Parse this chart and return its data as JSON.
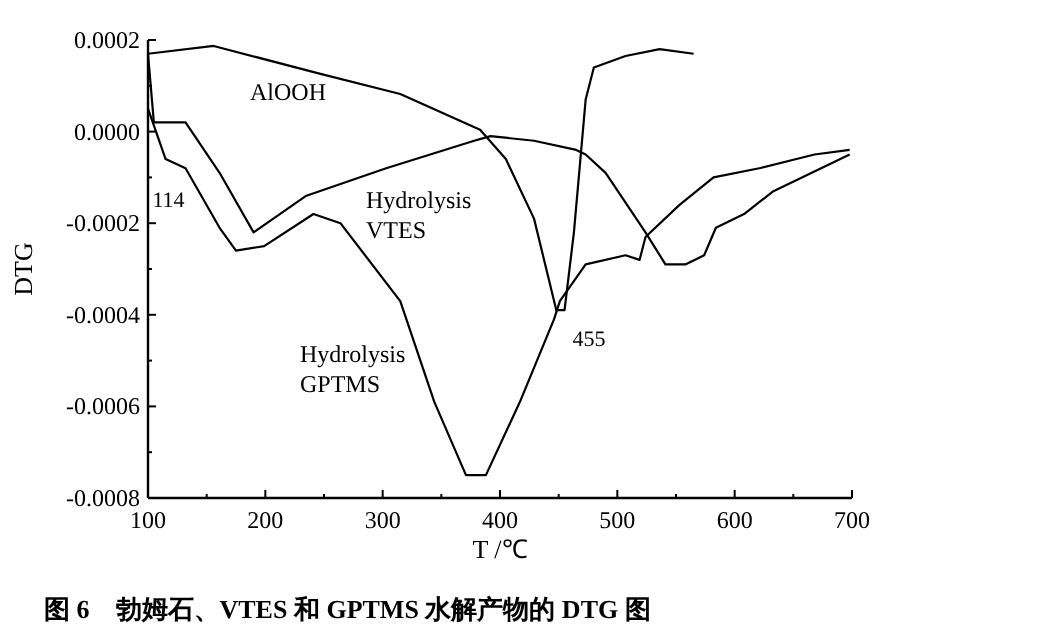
{
  "chart_data": {
    "type": "line",
    "title": "图 6　勃姆石、VTES 和 GPTMS 水解产物的 DTG 图",
    "xlabel": "T /℃",
    "ylabel": "DTG",
    "xlim": [
      100,
      700
    ],
    "xticks": [
      100,
      200,
      300,
      400,
      500,
      600,
      700
    ],
    "ylim": [
      -0.0008,
      0.0002
    ],
    "yticks": [
      {
        "value": -0.0008,
        "label": "-0.0008"
      },
      {
        "value": -0.0006,
        "label": "-0.0006"
      },
      {
        "value": -0.0004,
        "label": "-0.0004"
      },
      {
        "value": -0.0002,
        "label": "-0.0002"
      },
      {
        "value": 0,
        "label": "0.0000"
      },
      {
        "value": 0.0002,
        "label": "0.0002"
      }
    ],
    "grid": false,
    "marker": "none",
    "line_style": "solid",
    "series": [
      {
        "name": "AlOOH",
        "color": "#000000",
        "x": [
          100,
          156,
          247,
          315,
          383,
          405,
          429,
          448,
          455,
          463,
          473,
          480,
          507,
          536,
          565
        ],
        "values": [
          0.00017,
          0.000187,
          0.000126,
          8.2e-05,
          4e-06,
          -6e-05,
          -0.00019,
          -0.00039,
          -0.00039,
          -0.00022,
          7e-05,
          0.00014,
          0.000165,
          0.00018,
          0.00017
        ]
      },
      {
        "name": "Hydrolysis VTES",
        "color": "#000000",
        "x": [
          100,
          105,
          132,
          161,
          190,
          235,
          303,
          378,
          392,
          429,
          465,
          473,
          490,
          524,
          541,
          558,
          574,
          584,
          608,
          633,
          698
        ],
        "values": [
          0.00017,
          2e-05,
          2e-05,
          -9e-05,
          -0.00022,
          -0.00014,
          -8e-05,
          -2e-05,
          -1e-05,
          -2e-05,
          -4e-05,
          -5e-05,
          -9e-05,
          -0.00022,
          -0.00029,
          -0.00029,
          -0.00027,
          -0.00021,
          -0.00018,
          -0.00013,
          -5e-05
        ]
      },
      {
        "name": "Hydrolysis GPTMS",
        "color": "#000000",
        "x": [
          100,
          115,
          132,
          161,
          175,
          199,
          241,
          264,
          315,
          344,
          371,
          388,
          417,
          446,
          451,
          473,
          507,
          519,
          524,
          553,
          582,
          621,
          668,
          698
        ],
        "values": [
          5e-05,
          -6e-05,
          -8e-05,
          -0.00021,
          -0.00026,
          -0.00025,
          -0.00018,
          -0.0002,
          -0.00037,
          -0.00059,
          -0.00075,
          -0.00075,
          -0.00059,
          -0.00041,
          -0.00037,
          -0.00029,
          -0.00027,
          -0.00028,
          -0.00023,
          -0.00016,
          -0.0001,
          -8e-05,
          -5e-05,
          -4e-05
        ]
      }
    ],
    "annotations": [
      {
        "text": "114",
        "x": 114,
        "y": -6e-05
      },
      {
        "text": "455",
        "x": 455,
        "y": -0.00039
      }
    ]
  }
}
